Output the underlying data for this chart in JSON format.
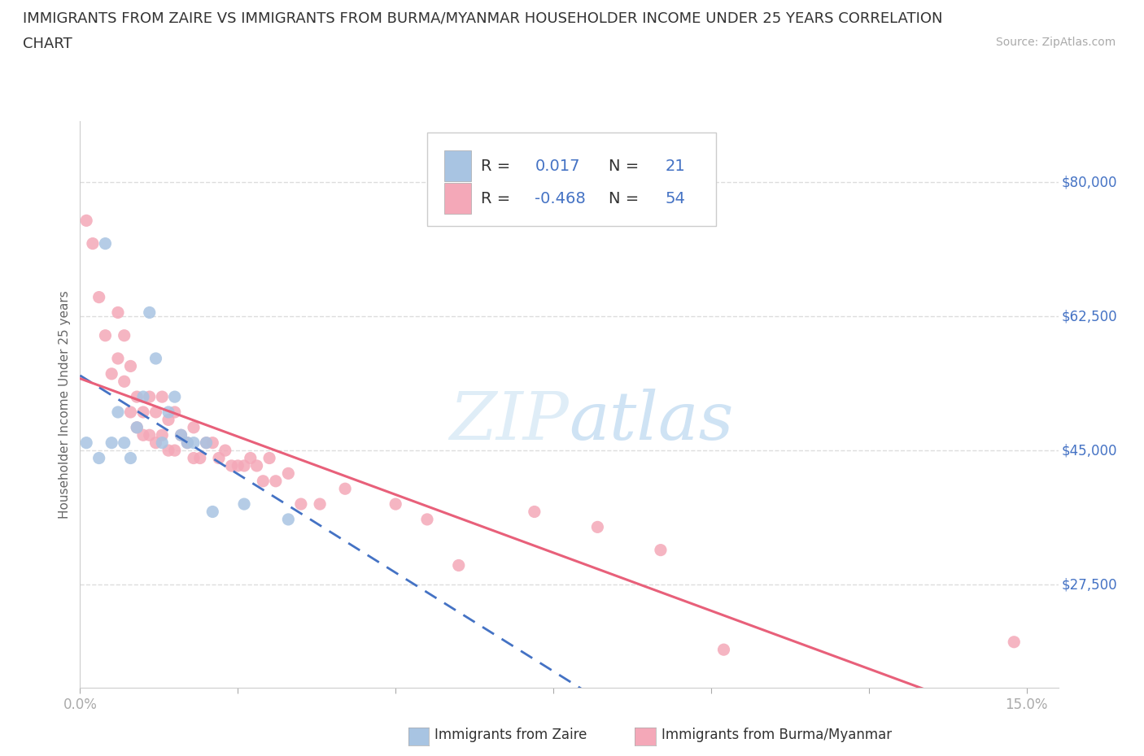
{
  "title_line1": "IMMIGRANTS FROM ZAIRE VS IMMIGRANTS FROM BURMA/MYANMAR HOUSEHOLDER INCOME UNDER 25 YEARS CORRELATION",
  "title_line2": "CHART",
  "source_text": "Source: ZipAtlas.com",
  "ylabel": "Householder Income Under 25 years",
  "xlim": [
    0.0,
    0.155
  ],
  "ylim": [
    14000,
    88000
  ],
  "yticks": [
    27500,
    45000,
    62500,
    80000
  ],
  "ytick_labels": [
    "$27,500",
    "$45,000",
    "$62,500",
    "$80,000"
  ],
  "xticks": [
    0.0,
    0.025,
    0.05,
    0.075,
    0.1,
    0.125,
    0.15
  ],
  "background_color": "#ffffff",
  "grid_color": "#dddddd",
  "zaire_color": "#a8c4e2",
  "burma_color": "#f4a8b8",
  "zaire_line_color": "#4472c4",
  "burma_line_color": "#e8607a",
  "label_color": "#4472c4",
  "zaire_points_x": [
    0.001,
    0.003,
    0.004,
    0.005,
    0.006,
    0.007,
    0.008,
    0.009,
    0.01,
    0.011,
    0.012,
    0.013,
    0.014,
    0.015,
    0.016,
    0.017,
    0.018,
    0.02,
    0.021,
    0.026,
    0.033
  ],
  "zaire_points_y": [
    46000,
    44000,
    72000,
    46000,
    50000,
    46000,
    44000,
    48000,
    52000,
    63000,
    57000,
    46000,
    50000,
    52000,
    47000,
    46000,
    46000,
    46000,
    37000,
    38000,
    36000
  ],
  "burma_points_x": [
    0.001,
    0.002,
    0.003,
    0.004,
    0.005,
    0.006,
    0.006,
    0.007,
    0.007,
    0.008,
    0.008,
    0.009,
    0.009,
    0.01,
    0.01,
    0.011,
    0.011,
    0.012,
    0.012,
    0.013,
    0.013,
    0.014,
    0.014,
    0.015,
    0.015,
    0.016,
    0.017,
    0.018,
    0.018,
    0.019,
    0.02,
    0.021,
    0.022,
    0.023,
    0.024,
    0.025,
    0.026,
    0.027,
    0.028,
    0.029,
    0.03,
    0.031,
    0.033,
    0.035,
    0.038,
    0.042,
    0.05,
    0.055,
    0.06,
    0.072,
    0.082,
    0.092,
    0.102,
    0.148
  ],
  "burma_points_y": [
    75000,
    72000,
    65000,
    60000,
    55000,
    63000,
    57000,
    60000,
    54000,
    56000,
    50000,
    52000,
    48000,
    50000,
    47000,
    52000,
    47000,
    50000,
    46000,
    52000,
    47000,
    49000,
    45000,
    50000,
    45000,
    47000,
    46000,
    48000,
    44000,
    44000,
    46000,
    46000,
    44000,
    45000,
    43000,
    43000,
    43000,
    44000,
    43000,
    41000,
    44000,
    41000,
    42000,
    38000,
    38000,
    40000,
    38000,
    36000,
    30000,
    37000,
    35000,
    32000,
    19000,
    20000
  ]
}
